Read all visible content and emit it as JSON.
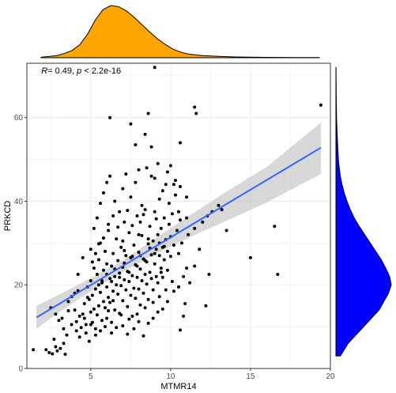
{
  "chart_data": {
    "type": "scatter",
    "xlabel": "MTMR14",
    "ylabel": "PRKCD",
    "annotation": {
      "r_label": "R",
      "r_value": "= 0.49, ",
      "p_label": "p",
      "p_value": " < 2.2e-16"
    },
    "xlim": [
      1.0,
      20.0
    ],
    "ylim": [
      0,
      73
    ],
    "xticks": [
      5,
      10,
      15,
      20
    ],
    "yticks": [
      0,
      20,
      40,
      60
    ],
    "grid": true,
    "colors": {
      "points": "#000000",
      "fit_line": "#3366FF",
      "ribbon": "#BEBEBE",
      "marginal_top": "#FFA500",
      "marginal_right": "#0000FF",
      "panel_border": "#333333",
      "grid": "#EBEBEB"
    },
    "fit": {
      "x": [
        1.6,
        19.4
      ],
      "y": [
        12.2,
        52.8
      ]
    },
    "ribbon": {
      "x": [
        1.6,
        3.0,
        5.0,
        6.0,
        7.0,
        8.0,
        10.0,
        12.0,
        14.0,
        16.0,
        19.4
      ],
      "lower": [
        9.5,
        13.4,
        18.5,
        20.8,
        23.1,
        25.2,
        29.2,
        32.8,
        36.2,
        39.7,
        46.5
      ],
      "upper": [
        15.0,
        17.6,
        21.6,
        23.7,
        25.9,
        28.4,
        33.6,
        38.6,
        43.5,
        48.2,
        58.8
      ]
    },
    "marginal_x": {
      "x": [
        1.5,
        2.5,
        3.0,
        3.5,
        4.0,
        4.5,
        5.0,
        5.5,
        6.0,
        6.5,
        7.0,
        7.5,
        8.0,
        8.5,
        9.0,
        9.5,
        10.0,
        10.5,
        11.0,
        12.0,
        13.0,
        14.0,
        15.0,
        16.0,
        17.0,
        18.0,
        19.5
      ],
      "density": [
        0.01,
        0.04,
        0.08,
        0.14,
        0.25,
        0.45,
        0.72,
        0.92,
        1.0,
        0.98,
        0.9,
        0.78,
        0.64,
        0.5,
        0.37,
        0.26,
        0.17,
        0.11,
        0.07,
        0.04,
        0.025,
        0.015,
        0.01,
        0.008,
        0.006,
        0.004,
        0.003
      ]
    },
    "marginal_y": {
      "y": [
        3,
        6,
        10,
        14,
        18,
        20,
        22,
        24,
        26,
        28,
        30,
        32,
        34,
        36,
        38,
        40,
        42,
        44,
        46,
        48,
        50,
        55,
        60,
        65,
        70,
        72
      ],
      "density": [
        0.08,
        0.22,
        0.5,
        0.78,
        0.95,
        1.0,
        0.97,
        0.9,
        0.82,
        0.72,
        0.62,
        0.52,
        0.42,
        0.33,
        0.26,
        0.2,
        0.15,
        0.11,
        0.08,
        0.06,
        0.045,
        0.025,
        0.012,
        0.006,
        0.003,
        0.002
      ]
    },
    "points": [
      [
        1.4,
        4.5
      ],
      [
        2.2,
        4.5
      ],
      [
        2.4,
        3.8
      ],
      [
        2.6,
        3.5
      ],
      [
        2.9,
        4.2
      ],
      [
        3.1,
        4.8
      ],
      [
        3.3,
        6.0
      ],
      [
        2.7,
        7.0
      ],
      [
        3.4,
        3.4
      ],
      [
        2.8,
        5.2
      ],
      [
        2.5,
        14.5
      ],
      [
        3.2,
        12.0
      ],
      [
        3.6,
        16.0
      ],
      [
        3.8,
        17.2
      ],
      [
        4.0,
        14.0
      ],
      [
        4.1,
        11.2
      ],
      [
        4.2,
        18.6
      ],
      [
        4.3,
        12.5
      ],
      [
        4.4,
        9.8
      ],
      [
        4.5,
        13.0
      ],
      [
        4.6,
        15.5
      ],
      [
        4.7,
        10.5
      ],
      [
        4.8,
        19.5
      ],
      [
        4.9,
        16.5
      ],
      [
        5.0,
        13.5
      ],
      [
        5.0,
        21.0
      ],
      [
        5.1,
        11.0
      ],
      [
        5.1,
        17.5
      ],
      [
        5.2,
        14.2
      ],
      [
        5.2,
        24.0
      ],
      [
        5.3,
        9.5
      ],
      [
        5.3,
        19.0
      ],
      [
        5.4,
        12.8
      ],
      [
        5.4,
        22.5
      ],
      [
        5.5,
        15.0
      ],
      [
        5.5,
        26.0
      ],
      [
        5.6,
        18.2
      ],
      [
        5.6,
        30.0
      ],
      [
        5.7,
        11.5
      ],
      [
        5.7,
        20.5
      ],
      [
        5.8,
        16.0
      ],
      [
        5.8,
        23.5
      ],
      [
        5.9,
        14.5
      ],
      [
        5.9,
        28.0
      ],
      [
        6.0,
        12.0
      ],
      [
        6.0,
        19.5
      ],
      [
        6.0,
        25.0
      ],
      [
        6.1,
        17.0
      ],
      [
        6.1,
        33.0
      ],
      [
        6.2,
        21.5
      ],
      [
        6.2,
        15.8
      ],
      [
        6.3,
        24.5
      ],
      [
        6.3,
        11.0
      ],
      [
        6.4,
        18.5
      ],
      [
        6.4,
        27.5
      ],
      [
        6.5,
        22.0
      ],
      [
        6.5,
        14.0
      ],
      [
        6.6,
        20.0
      ],
      [
        6.6,
        31.0
      ],
      [
        6.7,
        17.8
      ],
      [
        6.7,
        25.8
      ],
      [
        6.8,
        13.2
      ],
      [
        6.8,
        22.8
      ],
      [
        6.9,
        19.8
      ],
      [
        6.9,
        29.0
      ],
      [
        7.0,
        16.2
      ],
      [
        7.0,
        24.2
      ],
      [
        7.1,
        21.2
      ],
      [
        7.1,
        35.0
      ],
      [
        7.2,
        18.8
      ],
      [
        7.2,
        27.0
      ],
      [
        7.3,
        14.8
      ],
      [
        7.3,
        23.2
      ],
      [
        7.4,
        20.8
      ],
      [
        7.4,
        32.5
      ],
      [
        7.5,
        17.5
      ],
      [
        7.5,
        26.5
      ],
      [
        7.6,
        22.2
      ],
      [
        7.6,
        12.5
      ],
      [
        7.7,
        19.2
      ],
      [
        7.7,
        29.5
      ],
      [
        7.8,
        24.8
      ],
      [
        7.8,
        16.8
      ],
      [
        7.9,
        21.8
      ],
      [
        7.9,
        36.5
      ],
      [
        8.0,
        19.0
      ],
      [
        8.0,
        27.8
      ],
      [
        8.1,
        23.8
      ],
      [
        8.1,
        15.2
      ],
      [
        8.2,
        21.0
      ],
      [
        8.2,
        31.8
      ],
      [
        8.3,
        26.2
      ],
      [
        8.3,
        18.0
      ],
      [
        8.4,
        22.5
      ],
      [
        8.4,
        38.0
      ],
      [
        8.5,
        25.5
      ],
      [
        8.5,
        20.2
      ],
      [
        8.6,
        29.8
      ],
      [
        8.6,
        16.5
      ],
      [
        8.7,
        23.0
      ],
      [
        8.7,
        34.0
      ],
      [
        8.8,
        27.2
      ],
      [
        8.8,
        21.5
      ],
      [
        8.9,
        30.5
      ],
      [
        8.9,
        18.8
      ],
      [
        9.0,
        25.0
      ],
      [
        9.0,
        37.5
      ],
      [
        9.1,
        28.5
      ],
      [
        9.1,
        22.0
      ],
      [
        9.2,
        32.0
      ],
      [
        9.2,
        20.5
      ],
      [
        9.3,
        27.0
      ],
      [
        9.3,
        40.5
      ],
      [
        9.4,
        24.0
      ],
      [
        9.4,
        33.5
      ],
      [
        9.5,
        29.0
      ],
      [
        9.5,
        21.8
      ],
      [
        9.6,
        36.0
      ],
      [
        9.6,
        26.0
      ],
      [
        9.7,
        30.8
      ],
      [
        9.7,
        44.0
      ],
      [
        9.8,
        28.0
      ],
      [
        9.8,
        23.5
      ],
      [
        9.9,
        34.5
      ],
      [
        9.9,
        39.5
      ],
      [
        10.0,
        31.5
      ],
      [
        10.0,
        26.8
      ],
      [
        10.1,
        37.0
      ],
      [
        10.2,
        29.5
      ],
      [
        10.3,
        41.5
      ],
      [
        10.4,
        33.0
      ],
      [
        10.5,
        27.5
      ],
      [
        10.6,
        35.5
      ],
      [
        10.7,
        30.0
      ],
      [
        10.8,
        22.0
      ],
      [
        10.9,
        15.5
      ],
      [
        11.0,
        24.0
      ],
      [
        10.6,
        9.2
      ],
      [
        10.8,
        12.5
      ],
      [
        11.1,
        32.0
      ],
      [
        4.0,
        18.0
      ],
      [
        4.2,
        22.5
      ],
      [
        4.5,
        26.5
      ],
      [
        4.7,
        8.5
      ],
      [
        4.8,
        17.0
      ],
      [
        5.0,
        28.5
      ],
      [
        5.2,
        33.5
      ],
      [
        5.4,
        36.0
      ],
      [
        5.6,
        39.5
      ],
      [
        5.8,
        42.0
      ],
      [
        6.0,
        44.5
      ],
      [
        6.2,
        46.0
      ],
      [
        6.5,
        40.0
      ],
      [
        6.8,
        37.5
      ],
      [
        7.0,
        43.0
      ],
      [
        7.2,
        46.5
      ],
      [
        7.5,
        41.0
      ],
      [
        7.8,
        44.5
      ],
      [
        8.0,
        47.5
      ],
      [
        8.2,
        39.0
      ],
      [
        8.5,
        48.0
      ],
      [
        8.8,
        46.0
      ],
      [
        9.0,
        45.5
      ],
      [
        9.2,
        49.0
      ],
      [
        9.5,
        42.5
      ],
      [
        9.8,
        47.0
      ],
      [
        10.0,
        48.5
      ],
      [
        10.3,
        45.0
      ],
      [
        10.6,
        43.5
      ],
      [
        11.0,
        41.0
      ],
      [
        6.2,
        60.0
      ],
      [
        7.5,
        58.5
      ],
      [
        8.6,
        61.0
      ],
      [
        8.8,
        53.0
      ],
      [
        9.0,
        72.0
      ],
      [
        10.6,
        54.0
      ],
      [
        11.5,
        62.5
      ],
      [
        11.6,
        61.0
      ],
      [
        8.4,
        56.0
      ],
      [
        7.8,
        53.5
      ],
      [
        5.0,
        10.5
      ],
      [
        5.3,
        8.0
      ],
      [
        5.6,
        9.0
      ],
      [
        5.9,
        10.0
      ],
      [
        6.3,
        8.5
      ],
      [
        6.6,
        9.8
      ],
      [
        7.0,
        10.2
      ],
      [
        7.3,
        8.2
      ],
      [
        7.7,
        9.5
      ],
      [
        8.0,
        11.2
      ],
      [
        8.3,
        7.8
      ],
      [
        8.6,
        10.8
      ],
      [
        8.9,
        12.0
      ],
      [
        9.2,
        13.5
      ],
      [
        9.5,
        14.2
      ],
      [
        9.8,
        16.0
      ],
      [
        10.2,
        18.5
      ],
      [
        10.5,
        19.5
      ],
      [
        11.2,
        20.5
      ],
      [
        11.5,
        24.5
      ],
      [
        6.1,
        13.8
      ],
      [
        6.4,
        16.2
      ],
      [
        6.9,
        12.8
      ],
      [
        7.4,
        11.8
      ],
      [
        7.9,
        13.0
      ],
      [
        8.4,
        14.5
      ],
      [
        8.9,
        15.8
      ],
      [
        9.3,
        17.2
      ],
      [
        9.7,
        18.8
      ],
      [
        10.1,
        20.8
      ],
      [
        12.0,
        35.0
      ],
      [
        12.3,
        36.5
      ],
      [
        12.6,
        37.5
      ],
      [
        13.0,
        39.0
      ],
      [
        13.2,
        38.0
      ],
      [
        13.5,
        33.0
      ],
      [
        11.8,
        28.5
      ],
      [
        12.4,
        22.5
      ],
      [
        12.2,
        15.0
      ],
      [
        11.5,
        33.5
      ],
      [
        15.0,
        26.5
      ],
      [
        16.5,
        34.0
      ],
      [
        16.7,
        22.5
      ],
      [
        19.4,
        63.0
      ],
      [
        10.2,
        44.0
      ],
      [
        10.5,
        37.5
      ],
      [
        11.0,
        36.0
      ],
      [
        9.4,
        23.0
      ],
      [
        8.1,
        35.0
      ],
      [
        7.1,
        28.2
      ],
      [
        3.5,
        8.0
      ],
      [
        3.8,
        10.5
      ],
      [
        4.1,
        9.0
      ],
      [
        4.3,
        7.5
      ],
      [
        4.6,
        12.0
      ],
      [
        4.9,
        6.5
      ],
      [
        3.0,
        11.5
      ],
      [
        3.3,
        9.5
      ],
      [
        2.8,
        13.0
      ],
      [
        3.6,
        13.8
      ],
      [
        5.5,
        20.0
      ],
      [
        5.7,
        21.0
      ],
      [
        6.0,
        22.5
      ],
      [
        6.3,
        20.8
      ],
      [
        6.5,
        23.8
      ],
      [
        6.8,
        21.8
      ],
      [
        7.1,
        25.2
      ],
      [
        7.4,
        23.0
      ],
      [
        7.6,
        26.8
      ],
      [
        7.9,
        24.5
      ],
      [
        8.1,
        27.0
      ],
      [
        8.4,
        25.8
      ],
      [
        8.7,
        28.8
      ],
      [
        9.0,
        27.5
      ],
      [
        9.3,
        30.0
      ],
      [
        9.6,
        29.2
      ],
      [
        5.1,
        25.5
      ],
      [
        5.3,
        27.5
      ],
      [
        5.5,
        29.8
      ],
      [
        5.8,
        31.2
      ],
      [
        6.1,
        34.5
      ],
      [
        6.4,
        36.5
      ],
      [
        6.7,
        33.8
      ],
      [
        7.0,
        30.5
      ],
      [
        7.3,
        37.8
      ],
      [
        7.6,
        34.2
      ],
      [
        8.0,
        32.0
      ],
      [
        8.3,
        36.8
      ],
      [
        8.6,
        31.0
      ],
      [
        9.1,
        35.8
      ]
    ]
  }
}
